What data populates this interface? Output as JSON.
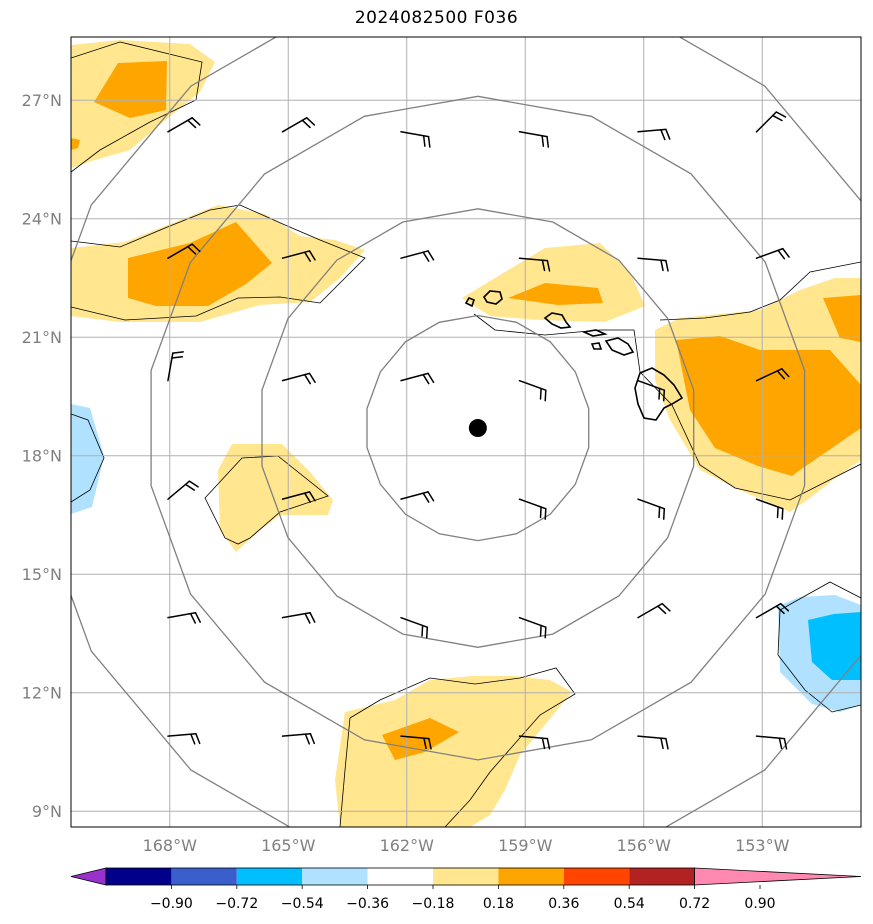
{
  "title": "2024082500 F036",
  "map": {
    "lon_range": [
      -170.5,
      -150.5
    ],
    "lat_range": [
      8.6,
      28.6
    ],
    "lon_ticks": [
      {
        "lon": -168,
        "label": "168°W"
      },
      {
        "lon": -165,
        "label": "165°W"
      },
      {
        "lon": -162,
        "label": "162°W"
      },
      {
        "lon": -159,
        "label": "159°W"
      },
      {
        "lon": -156,
        "label": "156°W"
      },
      {
        "lon": -153,
        "label": "153°W"
      }
    ],
    "lat_ticks": [
      {
        "lat": 9,
        "label": "9°N"
      },
      {
        "lat": 12,
        "label": "12°N"
      },
      {
        "lat": 15,
        "label": "15°N"
      },
      {
        "lat": 18,
        "label": "18°N"
      },
      {
        "lat": 21,
        "label": "21°N"
      },
      {
        "lat": 24,
        "label": "24°N"
      },
      {
        "lat": 27,
        "label": "27°N"
      }
    ],
    "grid": true,
    "center_marker": {
      "lon": -160.2,
      "lat": 18.7
    },
    "range_rings_deg": [
      2.85,
      5.55,
      8.4,
      11.3
    ],
    "colors": {
      "gridline": "#b0b0b0",
      "ring": "#808080",
      "coast": "#000000"
    }
  },
  "colorbar": {
    "levels": [
      "−0.90",
      "−0.72",
      "−0.54",
      "−0.36",
      "−0.18",
      "0.18",
      "0.36",
      "0.54",
      "0.72",
      "0.90"
    ],
    "colors": [
      "#9932cc",
      "#00008b",
      "#3a5fcd",
      "#00bfff",
      "#b0e2ff",
      "#ffffff",
      "#ffe68f",
      "#ffa500",
      "#ff4500",
      "#b22222",
      "#ff89b0"
    ]
  }
}
